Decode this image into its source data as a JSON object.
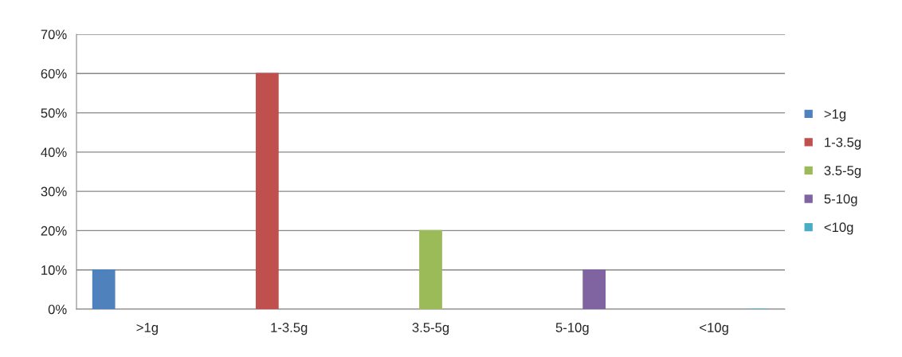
{
  "chart_data": {
    "type": "bar",
    "categories": [
      ">1g",
      "1-3.5g",
      "3.5-5g",
      "5-10g",
      "<10g"
    ],
    "series": [
      {
        "name": ">1g",
        "color": "#4f81bd",
        "values": [
          10,
          null,
          null,
          null,
          null
        ]
      },
      {
        "name": "1-3.5g",
        "color": "#c0504d",
        "values": [
          null,
          60,
          null,
          null,
          null
        ]
      },
      {
        "name": "3.5-5g",
        "color": "#9bbb59",
        "values": [
          null,
          null,
          20,
          null,
          null
        ]
      },
      {
        "name": "5-10g",
        "color": "#8064a2",
        "values": [
          null,
          null,
          null,
          10,
          null
        ]
      },
      {
        "name": "<10g",
        "color": "#4bacc6",
        "values": [
          null,
          null,
          null,
          null,
          0
        ]
      }
    ],
    "ylim": [
      0,
      70
    ],
    "yticks": [
      {
        "value": 0,
        "label": "0%"
      },
      {
        "value": 10,
        "label": "10%"
      },
      {
        "value": 20,
        "label": "20%"
      },
      {
        "value": 30,
        "label": "30%"
      },
      {
        "value": 40,
        "label": "40%"
      },
      {
        "value": 50,
        "label": "50%"
      },
      {
        "value": 60,
        "label": "60%"
      },
      {
        "value": 70,
        "label": "70%"
      }
    ],
    "grid": "y",
    "legend": "right"
  }
}
